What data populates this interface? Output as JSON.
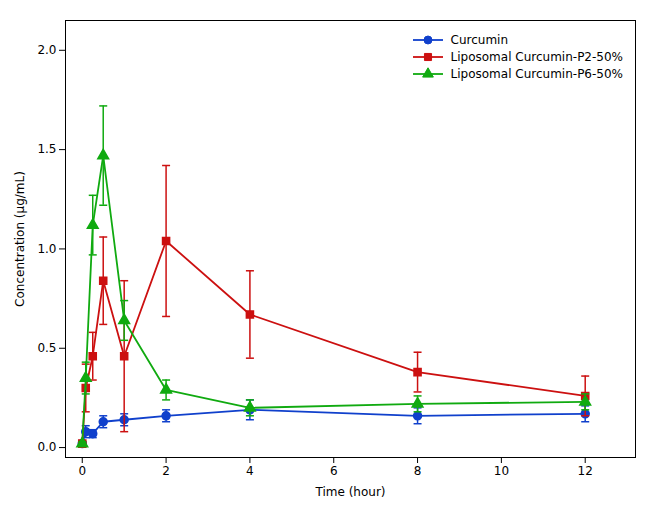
{
  "chart_data": {
    "type": "line",
    "xlabel": "Time (hour)",
    "ylabel": "Concentration (μg/mL)",
    "x": [
      0,
      0.083,
      0.25,
      0.5,
      1,
      2,
      4,
      8,
      12
    ],
    "series": [
      {
        "name": "Curcumin",
        "color": "#1040cc",
        "marker": "circle",
        "values": [
          0.02,
          0.08,
          0.07,
          0.13,
          0.14,
          0.16,
          0.19,
          0.16,
          0.17
        ],
        "yerr": [
          0.01,
          0.03,
          0.02,
          0.03,
          0.03,
          0.03,
          0.05,
          0.04,
          0.04
        ]
      },
      {
        "name": "Liposomal Curcumin-P2-50%",
        "color": "#cc1010",
        "marker": "square",
        "values": [
          0.02,
          0.3,
          0.46,
          0.84,
          0.46,
          1.04,
          0.67,
          0.38,
          0.26
        ],
        "yerr": [
          0.01,
          0.12,
          0.12,
          0.22,
          0.38,
          0.38,
          0.22,
          0.1,
          0.1
        ]
      },
      {
        "name": "Liposomal Curcumin-P6-50%",
        "color": "#10aa10",
        "marker": "triangle",
        "values": [
          0.02,
          0.35,
          1.12,
          1.47,
          0.64,
          0.29,
          0.2,
          0.22,
          0.23
        ],
        "yerr": [
          0.01,
          0.08,
          0.15,
          0.25,
          0.1,
          0.05,
          0.04,
          0.04,
          0.04
        ]
      }
    ],
    "xlim": [
      -0.4,
      13.2
    ],
    "ylim": [
      -0.05,
      2.15
    ],
    "xticks": [
      0,
      2,
      4,
      6,
      8,
      10,
      12
    ],
    "yticks": [
      {
        "value": 0,
        "label": "0.0"
      },
      0.5,
      {
        "value": 1,
        "label": "1.0"
      },
      1.5,
      {
        "value": 2,
        "label": "2.0"
      }
    ],
    "grid": false,
    "legend": "upper right"
  }
}
